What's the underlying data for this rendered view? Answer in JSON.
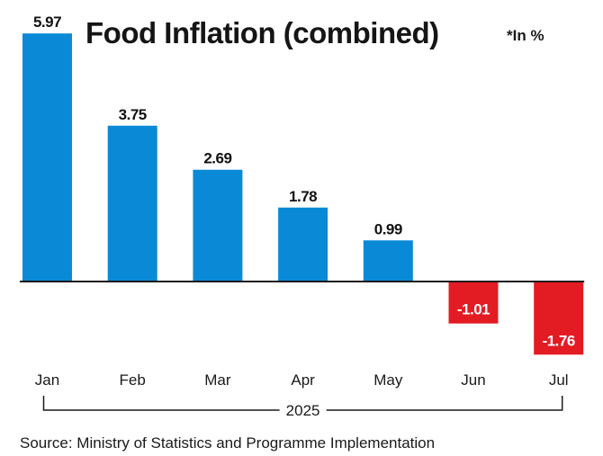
{
  "chart_data": {
    "type": "bar",
    "title": "Food Inflation (combined)",
    "unit_note": "*In %",
    "categories": [
      "Jan",
      "Feb",
      "Mar",
      "Apr",
      "May",
      "Jun",
      "Jul"
    ],
    "values": [
      5.97,
      3.75,
      2.69,
      1.78,
      0.99,
      -1.01,
      -1.76
    ],
    "value_labels": [
      "5.97",
      "3.75",
      "2.69",
      "1.78",
      "0.99",
      "-1.01",
      "-1.76"
    ],
    "xlabel": "",
    "ylabel": "",
    "x_group_label": "2025",
    "ylim": [
      -1.76,
      5.97
    ],
    "grid": false,
    "legend": "none",
    "colors": {
      "positive": "#0a8ad6",
      "negative": "#e31b23",
      "baseline": "#1a1a1a"
    },
    "source": "Source: Ministry of Statistics and Programme Implementation"
  }
}
